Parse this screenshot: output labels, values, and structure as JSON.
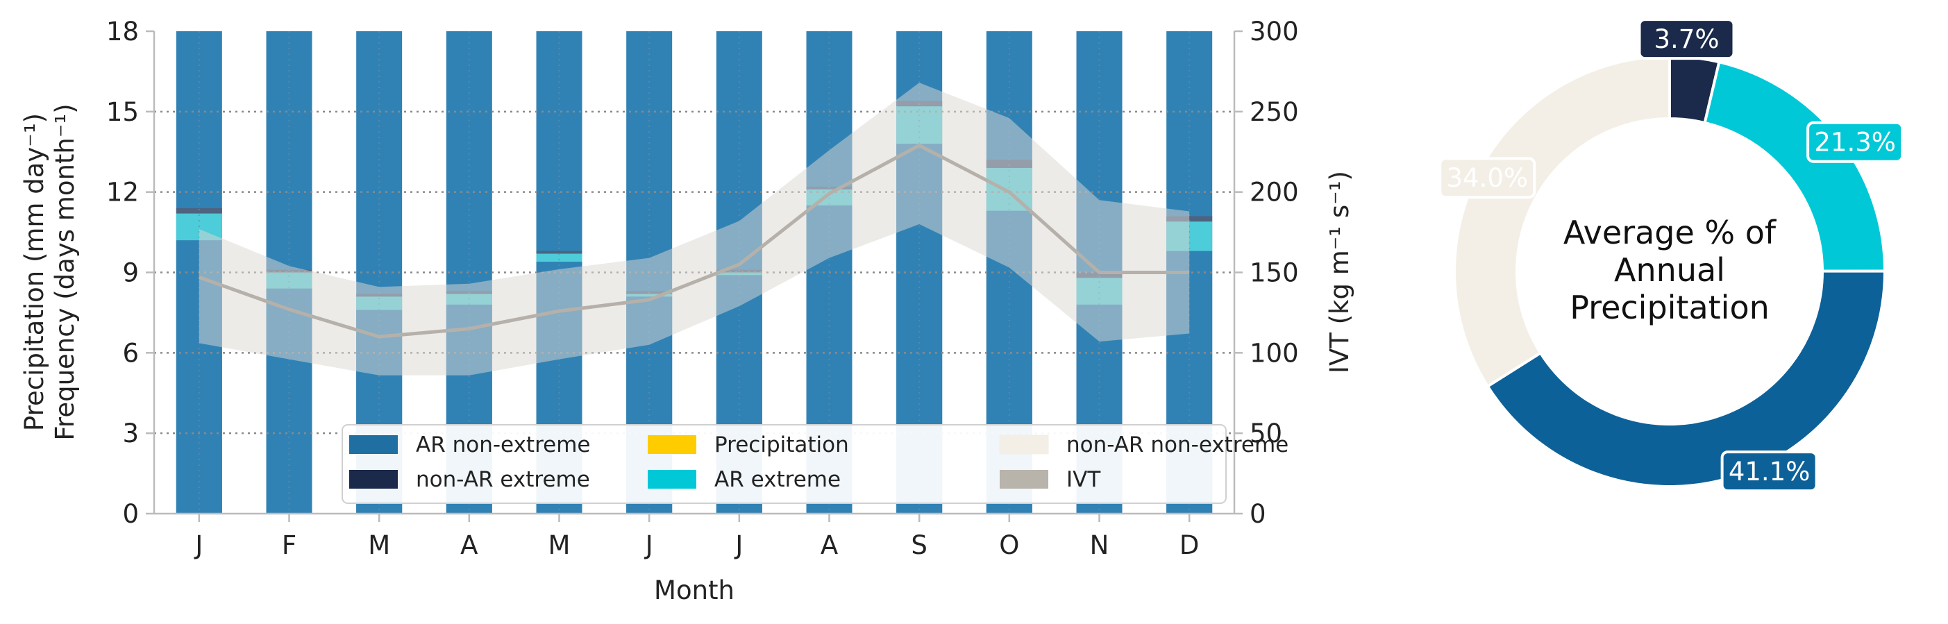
{
  "chart_data": [
    {
      "type": "bar",
      "categories": [
        "J",
        "F",
        "M",
        "A",
        "M",
        "J",
        "J",
        "A",
        "S",
        "O",
        "N",
        "D"
      ],
      "xlabel": "Month",
      "ylabel": [
        "Precipitation (mm day⁻¹)",
        "Frequency (days month⁻¹)"
      ],
      "ylim": [
        0,
        18
      ],
      "yticks": [
        0,
        3,
        6,
        9,
        12,
        15,
        18
      ],
      "y2label": "IVT (kg m⁻¹ s⁻¹)",
      "y2lim": [
        0,
        300
      ],
      "y2ticks": [
        0,
        50,
        100,
        150,
        200,
        250,
        300
      ],
      "grid": "horizontal dotted",
      "legend_placement": "lower right",
      "legend": [
        {
          "label": "AR non-extreme",
          "color": "#1f6fa3"
        },
        {
          "label": "non-AR extreme",
          "color": "#1b2a4a"
        },
        {
          "label": "Precipitation",
          "color": "#ffcc00"
        },
        {
          "label": "AR extreme",
          "color": "#00c8d7"
        },
        {
          "label": "non-AR non-extreme",
          "color": "#f3efe6"
        },
        {
          "label": "IVT",
          "color": "#b8b3ab"
        }
      ],
      "total_bar_height": 18,
      "series": [
        {
          "name": "AR non-extreme",
          "color": "#3182b4",
          "values": [
            10.2,
            8.4,
            7.6,
            7.8,
            9.4,
            8.1,
            8.9,
            11.5,
            13.8,
            11.3,
            7.8,
            9.8
          ]
        },
        {
          "name": "AR extreme",
          "color": "#4dccd9",
          "values": [
            1.0,
            0.6,
            0.5,
            0.4,
            0.3,
            0.1,
            0.1,
            0.6,
            1.4,
            1.6,
            1.0,
            1.1
          ]
        },
        {
          "name": "non-AR extreme",
          "color": "#4d6380",
          "values": [
            0.2,
            0.1,
            0.1,
            0.1,
            0.1,
            0.1,
            0.1,
            0.1,
            0.2,
            0.3,
            0.2,
            0.2
          ]
        }
      ],
      "ivt": {
        "name": "IVT",
        "color": "#b5b1aa",
        "mean": [
          147,
          127,
          110,
          115,
          126,
          133,
          155,
          199,
          229,
          200,
          150,
          150
        ],
        "lower": [
          106,
          96,
          86,
          86,
          96,
          105,
          129,
          159,
          180,
          153,
          107,
          112
        ],
        "upper": [
          177,
          154,
          141,
          143,
          152,
          159,
          182,
          226,
          268,
          246,
          195,
          188
        ]
      }
    },
    {
      "type": "pie",
      "style": "donut",
      "center_label": [
        "Average % of",
        "Annual",
        "Precipitation"
      ],
      "slices": [
        {
          "label": "non-AR extreme",
          "value": 3.7,
          "text": "3.7%",
          "color": "#1b2a4a",
          "text_color": "#ffffff"
        },
        {
          "label": "AR extreme",
          "value": 21.3,
          "text": "21.3%",
          "color": "#00c8d7",
          "text_color": "#ffffff"
        },
        {
          "label": "AR non-extreme",
          "value": 41.1,
          "text": "41.1%",
          "color": "#0d6199",
          "text_color": "#ffffff"
        },
        {
          "label": "non-AR non-extreme",
          "value": 34.0,
          "text": "34.0%",
          "color": "#f3efe6",
          "text_color": "#ffffff"
        }
      ]
    }
  ]
}
